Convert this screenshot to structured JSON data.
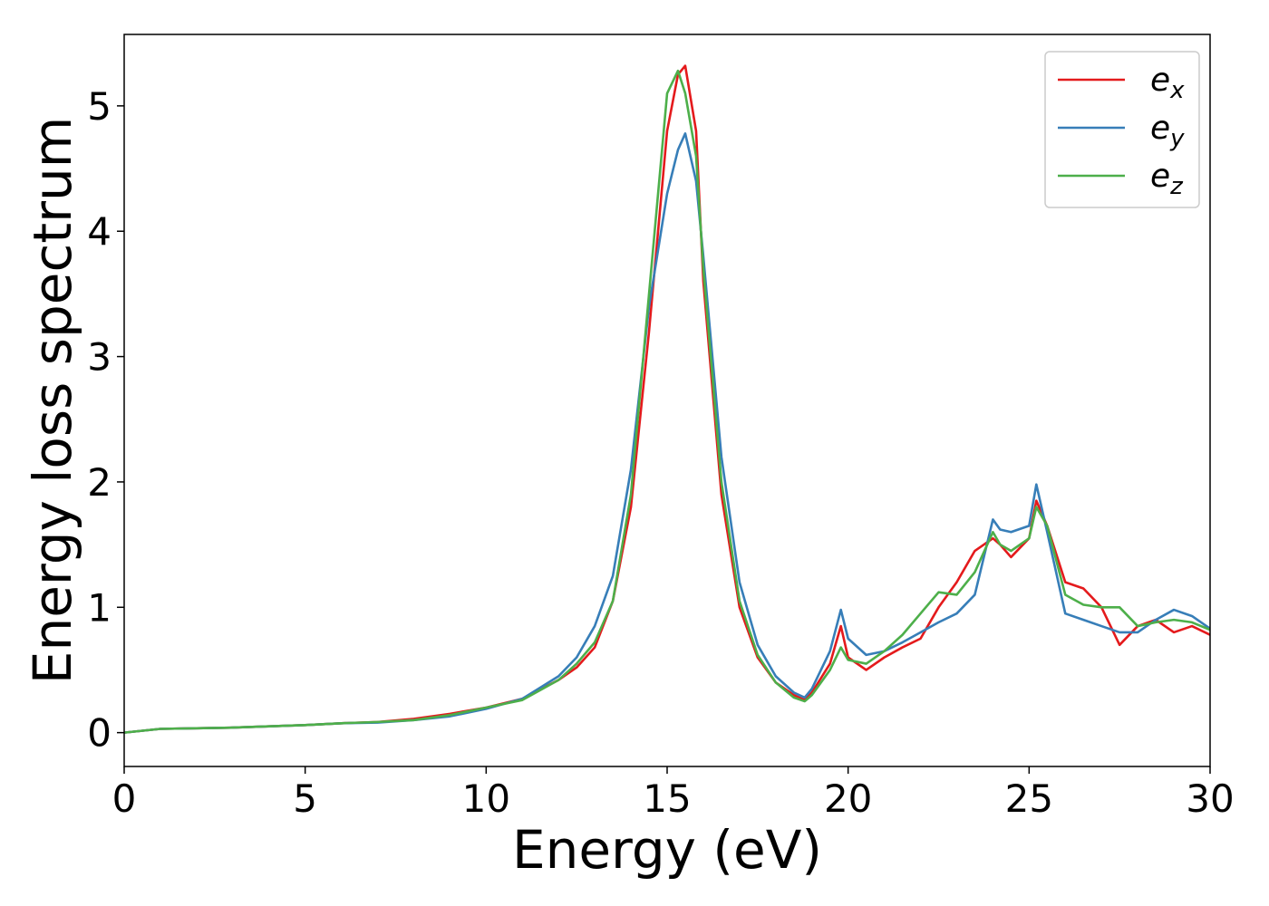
{
  "chart_data": {
    "type": "line",
    "xlabel": "Energy (eV)",
    "ylabel": "Energy loss spectrum",
    "x": [
      0,
      1,
      2,
      3,
      4,
      5,
      6,
      7,
      8,
      9,
      10,
      11,
      12,
      12.5,
      13,
      13.5,
      14,
      14.5,
      15,
      15.3,
      15.5,
      15.8,
      16,
      16.5,
      17,
      17.5,
      18,
      18.5,
      18.8,
      19,
      19.5,
      19.8,
      20,
      20.5,
      21,
      21.5,
      22,
      22.5,
      23,
      23.5,
      24,
      24.2,
      24.5,
      25,
      25.2,
      25.5,
      26,
      26.5,
      27,
      27.5,
      28,
      28.5,
      29,
      29.5,
      30
    ],
    "series": [
      {
        "name": "ex",
        "color": "#e41a1c",
        "values": [
          0,
          0.03,
          0.035,
          0.04,
          0.05,
          0.06,
          0.075,
          0.085,
          0.11,
          0.15,
          0.2,
          0.27,
          0.42,
          0.52,
          0.68,
          1.05,
          1.8,
          3.2,
          4.8,
          5.25,
          5.32,
          4.8,
          3.6,
          1.9,
          1.0,
          0.6,
          0.4,
          0.3,
          0.26,
          0.32,
          0.55,
          0.85,
          0.6,
          0.5,
          0.6,
          0.68,
          0.75,
          1.0,
          1.2,
          1.45,
          1.55,
          1.5,
          1.4,
          1.55,
          1.85,
          1.65,
          1.2,
          1.15,
          1.0,
          0.7,
          0.85,
          0.9,
          0.8,
          0.85,
          0.78
        ]
      },
      {
        "name": "ey",
        "color": "#377eb8",
        "values": [
          0,
          0.03,
          0.035,
          0.04,
          0.05,
          0.06,
          0.075,
          0.08,
          0.1,
          0.13,
          0.19,
          0.27,
          0.45,
          0.6,
          0.85,
          1.25,
          2.1,
          3.4,
          4.3,
          4.65,
          4.78,
          4.4,
          3.8,
          2.2,
          1.2,
          0.7,
          0.45,
          0.32,
          0.28,
          0.35,
          0.65,
          0.98,
          0.75,
          0.62,
          0.65,
          0.72,
          0.8,
          0.88,
          0.95,
          1.1,
          1.7,
          1.62,
          1.6,
          1.65,
          1.98,
          1.6,
          0.95,
          0.9,
          0.85,
          0.8,
          0.8,
          0.9,
          0.98,
          0.93,
          0.83
        ]
      },
      {
        "name": "ez",
        "color": "#4daf4a",
        "values": [
          0,
          0.03,
          0.035,
          0.04,
          0.05,
          0.06,
          0.075,
          0.085,
          0.1,
          0.14,
          0.2,
          0.26,
          0.42,
          0.55,
          0.72,
          1.05,
          1.9,
          3.5,
          5.1,
          5.28,
          5.1,
          4.6,
          3.7,
          2.0,
          1.05,
          0.62,
          0.4,
          0.28,
          0.25,
          0.3,
          0.5,
          0.68,
          0.58,
          0.55,
          0.65,
          0.78,
          0.95,
          1.12,
          1.1,
          1.28,
          1.6,
          1.5,
          1.45,
          1.55,
          1.8,
          1.65,
          1.1,
          1.02,
          1.0,
          1.0,
          0.85,
          0.88,
          0.9,
          0.88,
          0.82
        ]
      }
    ],
    "xlim": [
      0,
      30
    ],
    "xticks": [
      0,
      5,
      10,
      15,
      20,
      25,
      30
    ],
    "ylim": [
      -0.27,
      5.57
    ],
    "yticks": [
      0,
      1,
      2,
      3,
      4,
      5
    ],
    "grid": false,
    "legend": "upper right"
  }
}
